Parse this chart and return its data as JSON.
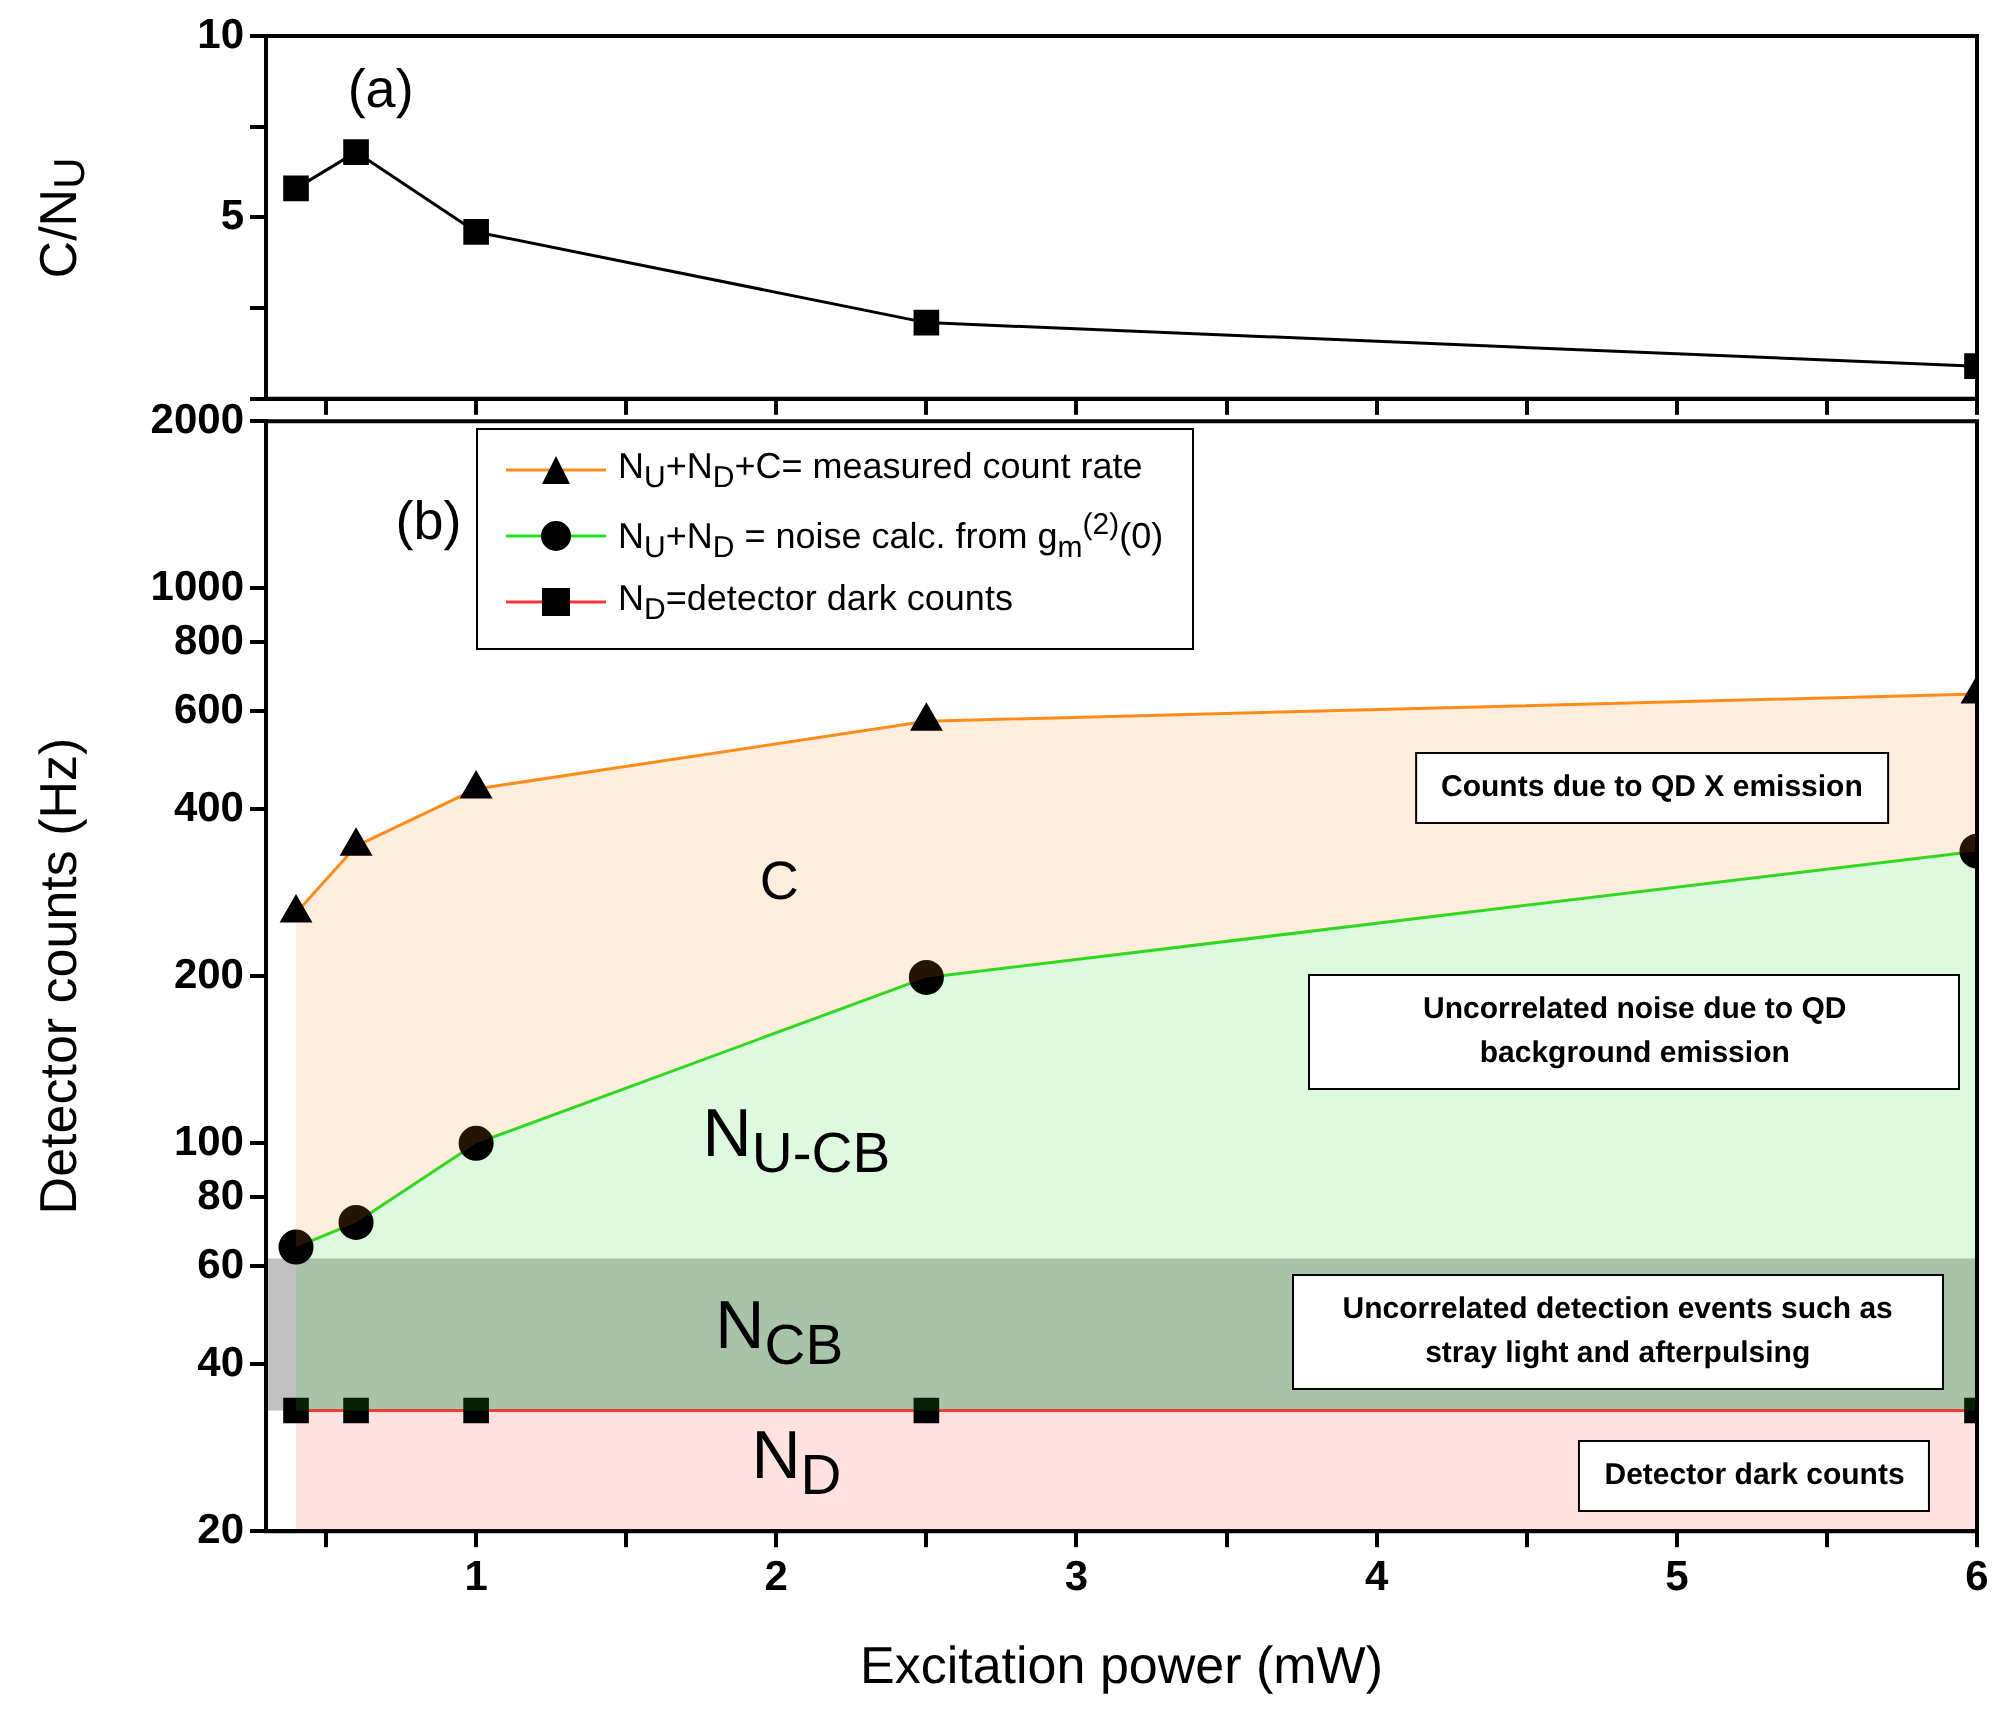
{
  "chart_data": [
    {
      "type": "line",
      "ylabel": "C/N$_{U}$",
      "x": [
        0.4,
        0.6,
        1,
        2.5,
        6
      ],
      "values": [
        5.8,
        6.8,
        4.6,
        2.1,
        0.9
      ],
      "color": "#000000",
      "marker": "square",
      "xlim": [
        0.3,
        6
      ],
      "xticks": [
        {
          "value": 0.5,
          "label": null
        },
        1,
        {
          "value": 1.5,
          "label": null
        },
        2,
        {
          "value": 2.5,
          "label": null
        },
        3,
        {
          "value": 3.5,
          "label": null
        },
        4,
        {
          "value": 4.5,
          "label": null
        },
        5,
        {
          "value": 5.5,
          "label": null
        },
        6
      ],
      "ylim": [
        0,
        10
      ],
      "yticks": [
        {
          "value": 0,
          "label": null
        },
        {
          "value": 2.5,
          "label": null
        },
        5,
        {
          "value": 7.5,
          "label": null
        },
        10
      ],
      "tick_labels": "y",
      "annotations": [
        "(a)"
      ]
    },
    {
      "type": "area",
      "xlabel": "Excitation power (mW)",
      "ylabel": "Detector counts (Hz)",
      "log": true,
      "legend": "top left",
      "xlim": [
        0.3,
        6
      ],
      "xticks": [
        {
          "value": 0.5,
          "label": null
        },
        1,
        {
          "value": 1.5,
          "label": null
        },
        2,
        {
          "value": 2.5,
          "label": null
        },
        3,
        {
          "value": 3.5,
          "label": null
        },
        4,
        {
          "value": 4.5,
          "label": null
        },
        5,
        {
          "value": 5.5,
          "label": null
        },
        6
      ],
      "ylim": [
        20,
        2000
      ],
      "yticks": [
        20,
        40,
        60,
        80,
        100,
        200,
        400,
        600,
        800,
        1000,
        2000
      ],
      "x": [
        0.4,
        0.6,
        1,
        2.5,
        6
      ],
      "series": [
        {
          "name": "N$_{U}$+N$_{D}$+C= measured count rate",
          "color": "#ff8c1a",
          "marker": "triangle",
          "values": [
            260,
            343,
            435,
            576,
            645
          ]
        },
        {
          "name": "N$_{U}$+N$_{D}$ = noise calc. from g$_{m}$$^{(2)}$(0)",
          "color": "#22dd22",
          "marker": "circle",
          "values": [
            65,
            72,
            100,
            199,
            336
          ]
        },
        {
          "name": "N$_{D}$=detector dark counts",
          "color": "#ff3333",
          "marker": "square",
          "values": [
            33,
            33,
            33,
            33,
            33
          ]
        }
      ],
      "bands": [
        {
          "axis": "y",
          "from": 33,
          "to": 62,
          "color": "#c0c0c0",
          "label": "N$_{CB}$"
        }
      ],
      "annotations": [
        "(b)",
        "C",
        "N$_{U-CB}$",
        "N$_{D}$",
        "Counts due to QD X emission",
        "Uncorrelated noise due to QD background emission",
        "Uncorrelated detection events such as stray light and afterpulsing",
        "Detector dark counts"
      ]
    }
  ]
}
